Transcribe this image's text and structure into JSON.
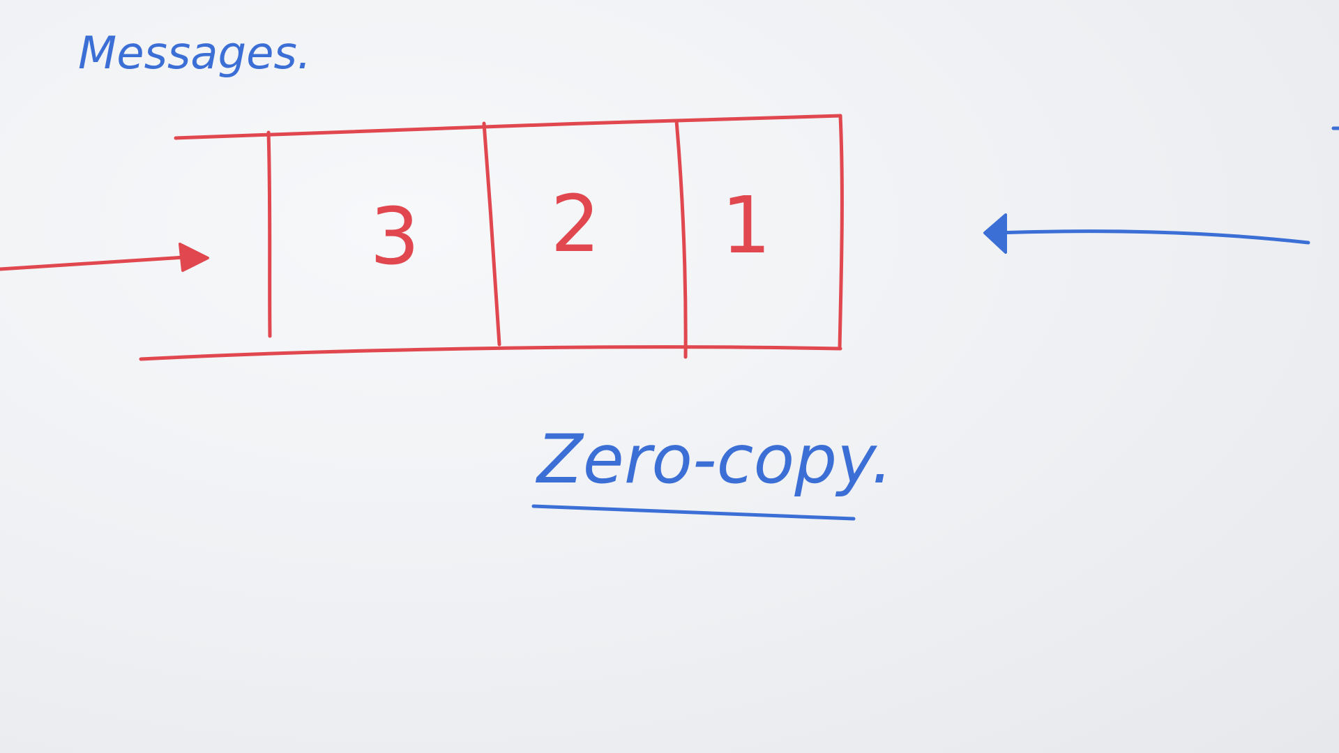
{
  "title": "Messages.",
  "queue": {
    "slots": [
      "3",
      "2",
      "1"
    ]
  },
  "caption": "Zero-copy.",
  "colors": {
    "red_ink": "#e0474e",
    "blue_ink": "#3b6fd6",
    "board": "#eef0f3"
  },
  "icons": {
    "incoming_arrow": "arrow-right-icon",
    "outgoing_arrow": "arrow-left-icon"
  }
}
